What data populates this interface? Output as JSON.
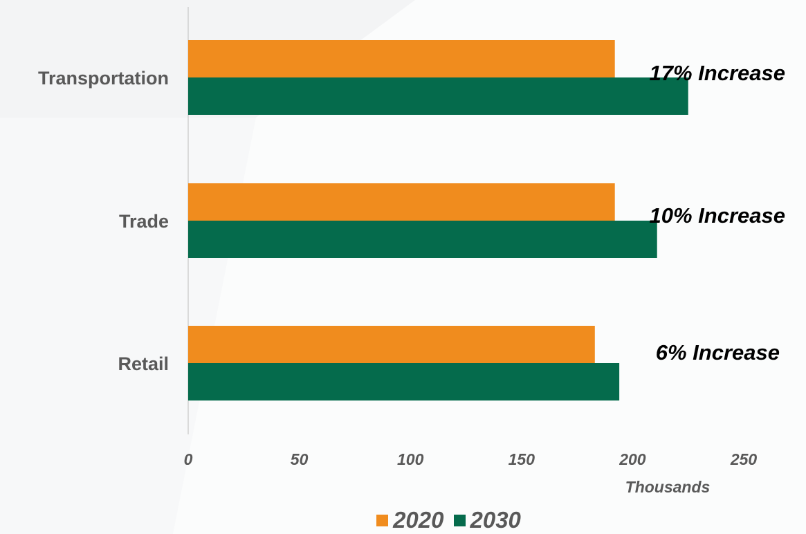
{
  "chart_data": {
    "type": "bar",
    "orientation": "horizontal",
    "categories": [
      "Transportation",
      "Trade",
      "Retail"
    ],
    "series": [
      {
        "name": "2020",
        "color": "#f08c1e",
        "values": [
          192,
          192,
          183
        ]
      },
      {
        "name": "2030",
        "color": "#056b4c",
        "values": [
          225,
          211,
          194
        ]
      }
    ],
    "x_ticks": [
      "0",
      "50",
      "100",
      "150",
      "200",
      "250"
    ],
    "xlim": [
      0,
      250
    ],
    "x_unit_label": "Thousands",
    "annotations": [
      "17% Increase",
      "10% Increase",
      "6% Increase"
    ],
    "legend_position": "bottom",
    "grid": false
  }
}
